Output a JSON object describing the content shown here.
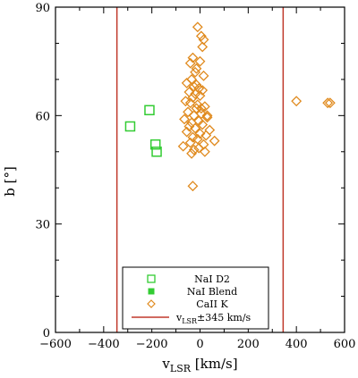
{
  "chart_data": {
    "type": "scatter",
    "xlabel": "v_LSR [km/s]",
    "xlabel_main": "v",
    "xlabel_sub": "LSR",
    "xlabel_rest": " [km/s]",
    "ylabel": "b [°]",
    "xlim": [
      -600,
      600
    ],
    "ylim": [
      0,
      90
    ],
    "xticks": [
      -600,
      -400,
      -200,
      0,
      200,
      400,
      600
    ],
    "yticks": [
      0,
      30,
      60,
      90
    ],
    "xtick_labels": [
      "−600",
      "−400",
      "−200",
      "0",
      "200",
      "400",
      "600"
    ],
    "ytick_labels": [
      "0",
      "30",
      "60",
      "90"
    ],
    "reference_lines": {
      "x": [
        -345,
        345
      ],
      "color": "#c0392b"
    },
    "legend_placement": "bottom-center",
    "series": [
      {
        "name": "NaI D2",
        "marker": "open-square",
        "color": "#33cc33",
        "x": [
          -290,
          -210,
          -185,
          -180
        ],
        "y": [
          57,
          61.5,
          52,
          50
        ]
      },
      {
        "name": "NaI Blend",
        "marker": "filled-square",
        "color": "#33cc33",
        "x": [],
        "y": []
      },
      {
        "name": "CaII K",
        "marker": "open-diamond",
        "color": "#e08a1e",
        "x": [
          -10,
          5,
          15,
          10,
          -30,
          0,
          -40,
          -15,
          -20,
          15,
          -35,
          -55,
          -25,
          -5,
          10,
          -45,
          -20,
          0,
          -30,
          -60,
          -40,
          -10,
          20,
          -15,
          -50,
          5,
          -25,
          30,
          -65,
          -5,
          -35,
          10,
          -45,
          -20,
          40,
          -55,
          0,
          25,
          -30,
          -10,
          60,
          -40,
          15,
          -70,
          -5,
          -25,
          20,
          -35,
          -15,
          5,
          30,
          -30,
          400,
          530,
          540
        ],
        "y": [
          84.5,
          82,
          81,
          79,
          76,
          75,
          74.5,
          73,
          72,
          71,
          70,
          69,
          68,
          67.5,
          67,
          66.5,
          66,
          65.5,
          65,
          64,
          63.5,
          63,
          62.5,
          62,
          61,
          60.5,
          60,
          59.5,
          59,
          58.5,
          58,
          57.5,
          57,
          56.5,
          56,
          55.5,
          55,
          54.5,
          54,
          53.5,
          53,
          52.5,
          52,
          51.5,
          51,
          50.5,
          50,
          49.5,
          68.5,
          62,
          60,
          40.5,
          64,
          63.5,
          63.5
        ]
      }
    ],
    "legend": {
      "entries": [
        "NaI D2",
        "NaI Blend",
        "CaII K"
      ],
      "line_entry_main": "v",
      "line_entry_sub": "LSR",
      "line_entry_rest": "±345 km/s"
    }
  },
  "colors": {
    "reference_line": "#c0392b",
    "nai": "#33cc33",
    "caii": "#e08a1e"
  }
}
